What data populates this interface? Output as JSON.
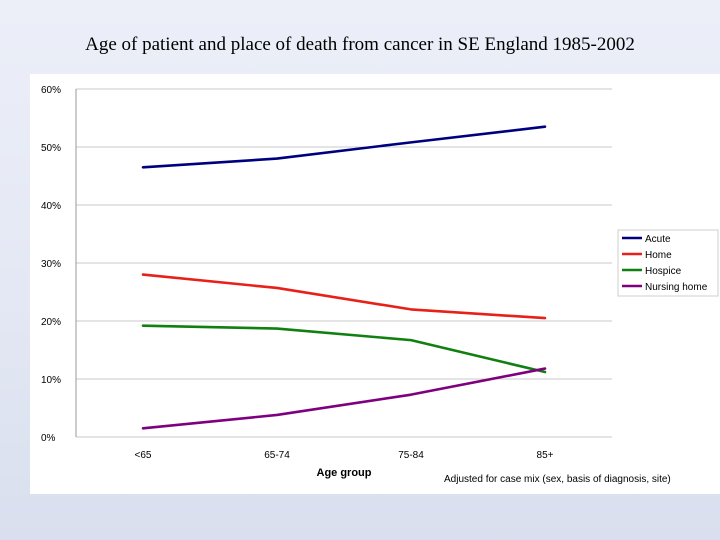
{
  "slide": {
    "title": "Age of patient and place of death from cancer in SE England 1985-2002"
  },
  "footnote": "Adjusted for case mix (sex, basis of diagnosis, site)",
  "colors": {
    "acute": "#00007f",
    "home": "#e8201a",
    "hospice": "#108010",
    "nursing_home": "#7f007f"
  },
  "chart_data": {
    "type": "line",
    "title": "",
    "xlabel": "Age group",
    "ylabel": "",
    "categories": [
      "<65",
      "65-74",
      "75-84",
      "85+"
    ],
    "ylim": [
      0,
      60
    ],
    "yticks": [
      "0%",
      "10%",
      "20%",
      "30%",
      "40%",
      "50%",
      "60%"
    ],
    "grid": true,
    "legend_position": "right",
    "series": [
      {
        "name": "Acute",
        "color": "#00007f",
        "values": [
          46.5,
          48,
          50.8,
          53.5
        ]
      },
      {
        "name": "Home",
        "color": "#e8201a",
        "values": [
          28,
          25.7,
          22,
          20.5
        ]
      },
      {
        "name": "Hospice",
        "color": "#108010",
        "values": [
          19.2,
          18.7,
          16.7,
          11.2
        ]
      },
      {
        "name": "Nursing home",
        "color": "#7f007f",
        "values": [
          1.5,
          3.8,
          7.3,
          11.8
        ]
      }
    ]
  }
}
